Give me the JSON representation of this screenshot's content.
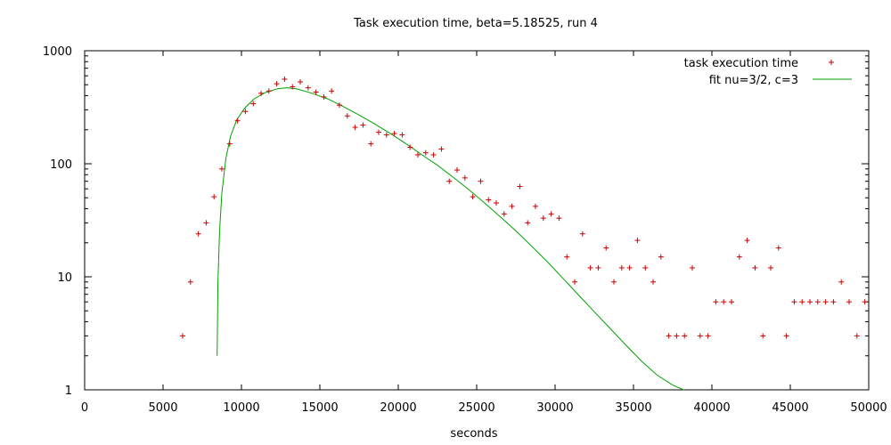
{
  "chart_data": {
    "type": "scatter",
    "title": "Task execution time, beta=5.18525, run 4",
    "xlabel": "seconds",
    "ylabel": "",
    "xlim": [
      0,
      50000
    ],
    "ylim": [
      1,
      1000
    ],
    "y_scale": "log",
    "grid": false,
    "legend_position": "top-right",
    "x_ticks": [
      "0",
      "5000",
      "10000",
      "15000",
      "20000",
      "25000",
      "30000",
      "35000",
      "40000",
      "45000",
      "50000"
    ],
    "y_ticks": [
      "1",
      "10",
      "100",
      "1000"
    ],
    "series": [
      {
        "name": "task execution time",
        "kind": "points",
        "color": "#cc0000",
        "x": [
          6250,
          6750,
          7250,
          7750,
          8250,
          8750,
          9250,
          9750,
          10250,
          10750,
          11250,
          11750,
          12250,
          12750,
          13250,
          13750,
          14250,
          14750,
          15250,
          15750,
          16250,
          16750,
          17250,
          17750,
          18250,
          18750,
          19250,
          19750,
          20250,
          20750,
          21250,
          21750,
          22250,
          22750,
          23250,
          23750,
          24250,
          24750,
          25250,
          25750,
          26250,
          26750,
          27250,
          27750,
          28250,
          28750,
          29250,
          29750,
          30250,
          30750,
          31250,
          31750,
          32250,
          32750,
          33250,
          33750,
          34250,
          34750,
          35250,
          35750,
          36250,
          36750,
          37250,
          37750,
          38250,
          38750,
          39250,
          39750,
          40250,
          40750,
          41250,
          41750,
          42250,
          42750,
          43250,
          43750,
          44250,
          44750,
          45250,
          45750,
          46250,
          46750,
          47250,
          47750,
          48250,
          48750,
          49250,
          49750
        ],
        "y": [
          3,
          9,
          24,
          30,
          51,
          90,
          150,
          240,
          290,
          340,
          420,
          440,
          510,
          560,
          480,
          530,
          470,
          430,
          390,
          440,
          330,
          265,
          210,
          220,
          150,
          190,
          180,
          185,
          180,
          140,
          120,
          125,
          120,
          135,
          70,
          88,
          75,
          51,
          70,
          48,
          45,
          36,
          42,
          63,
          30,
          42,
          33,
          36,
          33,
          15,
          9,
          24,
          12,
          12,
          18,
          9,
          12,
          12,
          21,
          12,
          9,
          15,
          3,
          3,
          3,
          12,
          3,
          3,
          6,
          6,
          6,
          15,
          21,
          12,
          3,
          12,
          18,
          3,
          6,
          6,
          6,
          6,
          6,
          6,
          9,
          6,
          3,
          6
        ]
      },
      {
        "name": "fit nu=3/2, c=3",
        "kind": "line",
        "color": "#00a000",
        "x": [
          8450,
          8500,
          8600,
          8750,
          9000,
          9300,
          9700,
          10200,
          10800,
          11500,
          12300,
          12900,
          13500,
          14500,
          15500,
          16500,
          17500,
          18500,
          19500,
          20500,
          21500,
          22500,
          23500,
          24500,
          25500,
          26500,
          27500,
          28500,
          29500,
          30500,
          31500,
          32500,
          33500,
          34500,
          35500,
          36500,
          37500,
          38200
        ],
        "y": [
          2,
          9,
          25,
          55,
          110,
          175,
          245,
          310,
          375,
          425,
          460,
          470,
          460,
          420,
          375,
          320,
          270,
          225,
          185,
          150,
          120,
          97,
          76,
          59,
          45,
          34,
          25.5,
          18.7,
          13.6,
          9.7,
          6.9,
          4.9,
          3.5,
          2.5,
          1.8,
          1.35,
          1.1,
          1.0
        ]
      }
    ]
  }
}
